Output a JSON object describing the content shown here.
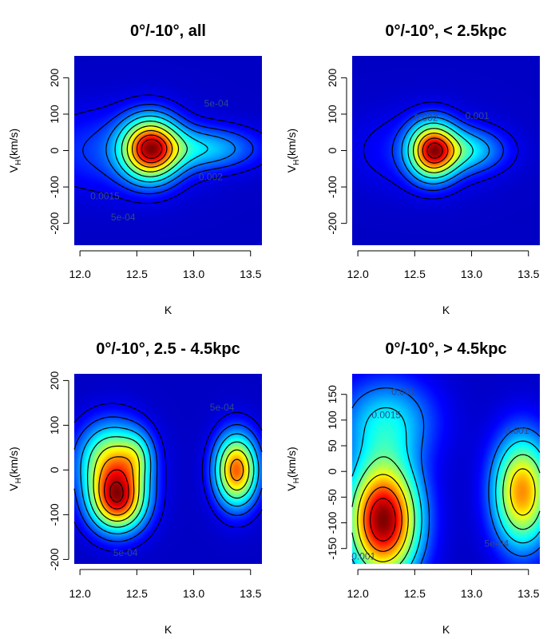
{
  "chart_data": [
    {
      "type": "heatmap",
      "title": "0°/-10°, all",
      "xlabel": "K",
      "ylabel_main": "V",
      "ylabel_sub": "H",
      "ylabel_rest": "(km/s)",
      "xlim": [
        11.95,
        13.6
      ],
      "ylim": [
        -260,
        260
      ],
      "xticks": [
        12.0,
        12.5,
        13.0,
        13.5
      ],
      "xtick_labels": [
        "12.0",
        "12.5",
        "13.0",
        "13.5"
      ],
      "yticks": [
        200,
        100,
        0,
        -100,
        -200
      ],
      "ytick_labels": [
        "200",
        "100",
        "0",
        "-100",
        "-200"
      ],
      "components": [
        {
          "x": 12.62,
          "y": 5,
          "sx": 0.17,
          "sy": 58,
          "w": 1.0
        },
        {
          "x": 13.1,
          "y": 5,
          "sx": 0.33,
          "sy": 40,
          "w": 0.32
        },
        {
          "x": 12.3,
          "y": 0,
          "sx": 0.5,
          "sy": 80,
          "w": 0.17
        }
      ],
      "contour_levels": [
        0.05,
        0.12,
        0.2,
        0.3,
        0.42,
        0.55,
        0.68,
        0.8,
        0.9
      ],
      "contour_labels": [
        {
          "text": "5e-04",
          "x": 13.2,
          "y": 130
        },
        {
          "text": "0.002",
          "x": 13.15,
          "y": -72
        },
        {
          "text": "0.0015",
          "x": 12.22,
          "y": -125
        },
        {
          "text": "5e-04",
          "x": 12.38,
          "y": -183
        }
      ]
    },
    {
      "type": "heatmap",
      "title": "0°/-10°, < 2.5kpc",
      "xlabel": "K",
      "ylabel_main": "V",
      "ylabel_sub": "H",
      "ylabel_rest": "(km/s)",
      "xlim": [
        11.95,
        13.6
      ],
      "ylim": [
        -260,
        260
      ],
      "xticks": [
        12.0,
        12.5,
        13.0,
        13.5
      ],
      "xtick_labels": [
        "12.0",
        "12.5",
        "13.0",
        "13.5"
      ],
      "yticks": [
        200,
        100,
        0,
        -100,
        -200
      ],
      "ytick_labels": [
        "200",
        "100",
        "0",
        "-100",
        "-200"
      ],
      "components": [
        {
          "x": 12.66,
          "y": 0,
          "sx": 0.14,
          "sy": 52,
          "w": 1.0
        },
        {
          "x": 12.95,
          "y": 0,
          "sx": 0.23,
          "sy": 40,
          "w": 0.35
        },
        {
          "x": 12.55,
          "y": 0,
          "sx": 0.42,
          "sy": 75,
          "w": 0.13
        }
      ],
      "contour_levels": [
        0.05,
        0.12,
        0.22,
        0.35,
        0.5,
        0.65,
        0.8,
        0.92
      ],
      "contour_labels": [
        {
          "text": "0.002",
          "x": 12.6,
          "y": 90
        },
        {
          "text": "0.001",
          "x": 13.05,
          "y": 95
        }
      ]
    },
    {
      "type": "heatmap",
      "title": "0°/-10°, 2.5 - 4.5kpc",
      "xlabel": "K",
      "ylabel_main": "V",
      "ylabel_sub": "H",
      "ylabel_rest": "(km/s)",
      "xlim": [
        11.95,
        13.6
      ],
      "ylim": [
        -210,
        215
      ],
      "xticks": [
        12.0,
        12.5,
        13.0,
        13.5
      ],
      "xtick_labels": [
        "12.0",
        "12.5",
        "13.0",
        "13.5"
      ],
      "yticks": [
        200,
        100,
        0,
        -100,
        -200
      ],
      "ytick_labels": [
        "200",
        "100",
        "0",
        "-100",
        "-200"
      ],
      "components": [
        {
          "x": 12.33,
          "y": -70,
          "sx": 0.17,
          "sy": 48,
          "w": 1.0
        },
        {
          "x": 12.28,
          "y": 20,
          "sx": 0.2,
          "sy": 58,
          "w": 0.75
        },
        {
          "x": 12.5,
          "y": 30,
          "sx": 0.1,
          "sy": 38,
          "w": 0.25
        },
        {
          "x": 13.38,
          "y": 0,
          "sx": 0.13,
          "sy": 55,
          "w": 0.98
        }
      ],
      "contour_levels": [
        0.05,
        0.14,
        0.26,
        0.4,
        0.55,
        0.7,
        0.84,
        0.95
      ],
      "contour_labels": [
        {
          "text": "5e-04",
          "x": 13.25,
          "y": 140
        },
        {
          "text": "5e-04",
          "x": 12.4,
          "y": -185
        }
      ]
    },
    {
      "type": "heatmap",
      "title": "0°/-10°, > 4.5kpc",
      "xlabel": "K",
      "ylabel_main": "V",
      "ylabel_sub": "H",
      "ylabel_rest": "(km/s)",
      "xlim": [
        11.95,
        13.6
      ],
      "ylim": [
        -180,
        190
      ],
      "xticks": [
        12.0,
        12.5,
        13.0,
        13.5
      ],
      "xtick_labels": [
        "12.0",
        "12.5",
        "13.0",
        "13.5"
      ],
      "yticks": [
        150,
        100,
        50,
        0,
        -50,
        -100,
        -150
      ],
      "ytick_labels": [
        "150",
        "100",
        "50",
        "0",
        "-50",
        "-100",
        "-150"
      ],
      "components": [
        {
          "x": 12.22,
          "y": -95,
          "sx": 0.22,
          "sy": 80,
          "w": 1.0
        },
        {
          "x": 12.25,
          "y": 100,
          "sx": 0.3,
          "sy": 60,
          "w": 0.3
        },
        {
          "x": 13.45,
          "y": -40,
          "sx": 0.18,
          "sy": 75,
          "w": 0.72
        }
      ],
      "contour_levels": [
        0.18,
        0.3,
        0.45,
        0.6,
        0.75,
        0.88
      ],
      "contour_labels": [
        {
          "text": "0.001",
          "x": 12.4,
          "y": 155
        },
        {
          "text": "0.0015",
          "x": 12.25,
          "y": 110
        },
        {
          "text": "0.001",
          "x": 13.4,
          "y": 80
        },
        {
          "text": "5e-04",
          "x": 13.22,
          "y": -140
        },
        {
          "text": "0.001",
          "x": 12.05,
          "y": -165
        }
      ]
    }
  ]
}
